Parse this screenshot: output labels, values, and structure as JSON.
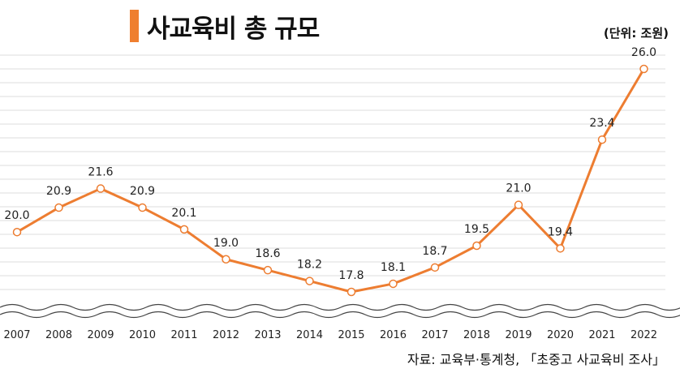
{
  "chart_data": {
    "type": "line",
    "title": "사교육비 총 규모",
    "unit_label": "(단위: 조원)",
    "source": "자료: 교육부·통계청, 「초중고 사교육비 조사」",
    "categories": [
      "2007",
      "2008",
      "2009",
      "2010",
      "2011",
      "2012",
      "2013",
      "2014",
      "2015",
      "2016",
      "2017",
      "2018",
      "2019",
      "2020",
      "2021",
      "2022"
    ],
    "series": [
      {
        "name": "사교육비 총 규모",
        "values": [
          20.0,
          20.9,
          21.6,
          20.9,
          20.1,
          19.0,
          18.6,
          18.2,
          17.8,
          18.1,
          18.7,
          19.5,
          21.0,
          19.4,
          23.4,
          26.0
        ],
        "labels": [
          "20.0",
          "20.9",
          "21.6",
          "20.9",
          "20.1",
          "19.0",
          "18.6",
          "18.2",
          "17.8",
          "18.1",
          "18.7",
          "19.5",
          "21.0",
          "19.4",
          "23.4",
          "26.0"
        ]
      }
    ],
    "xlabel": "",
    "ylabel": "",
    "axis_break": true,
    "grid": true,
    "colors": {
      "line": "#ed7d31",
      "marker_fill": "#ffffff",
      "grid": "#dddddd",
      "wave": "#444444"
    }
  }
}
